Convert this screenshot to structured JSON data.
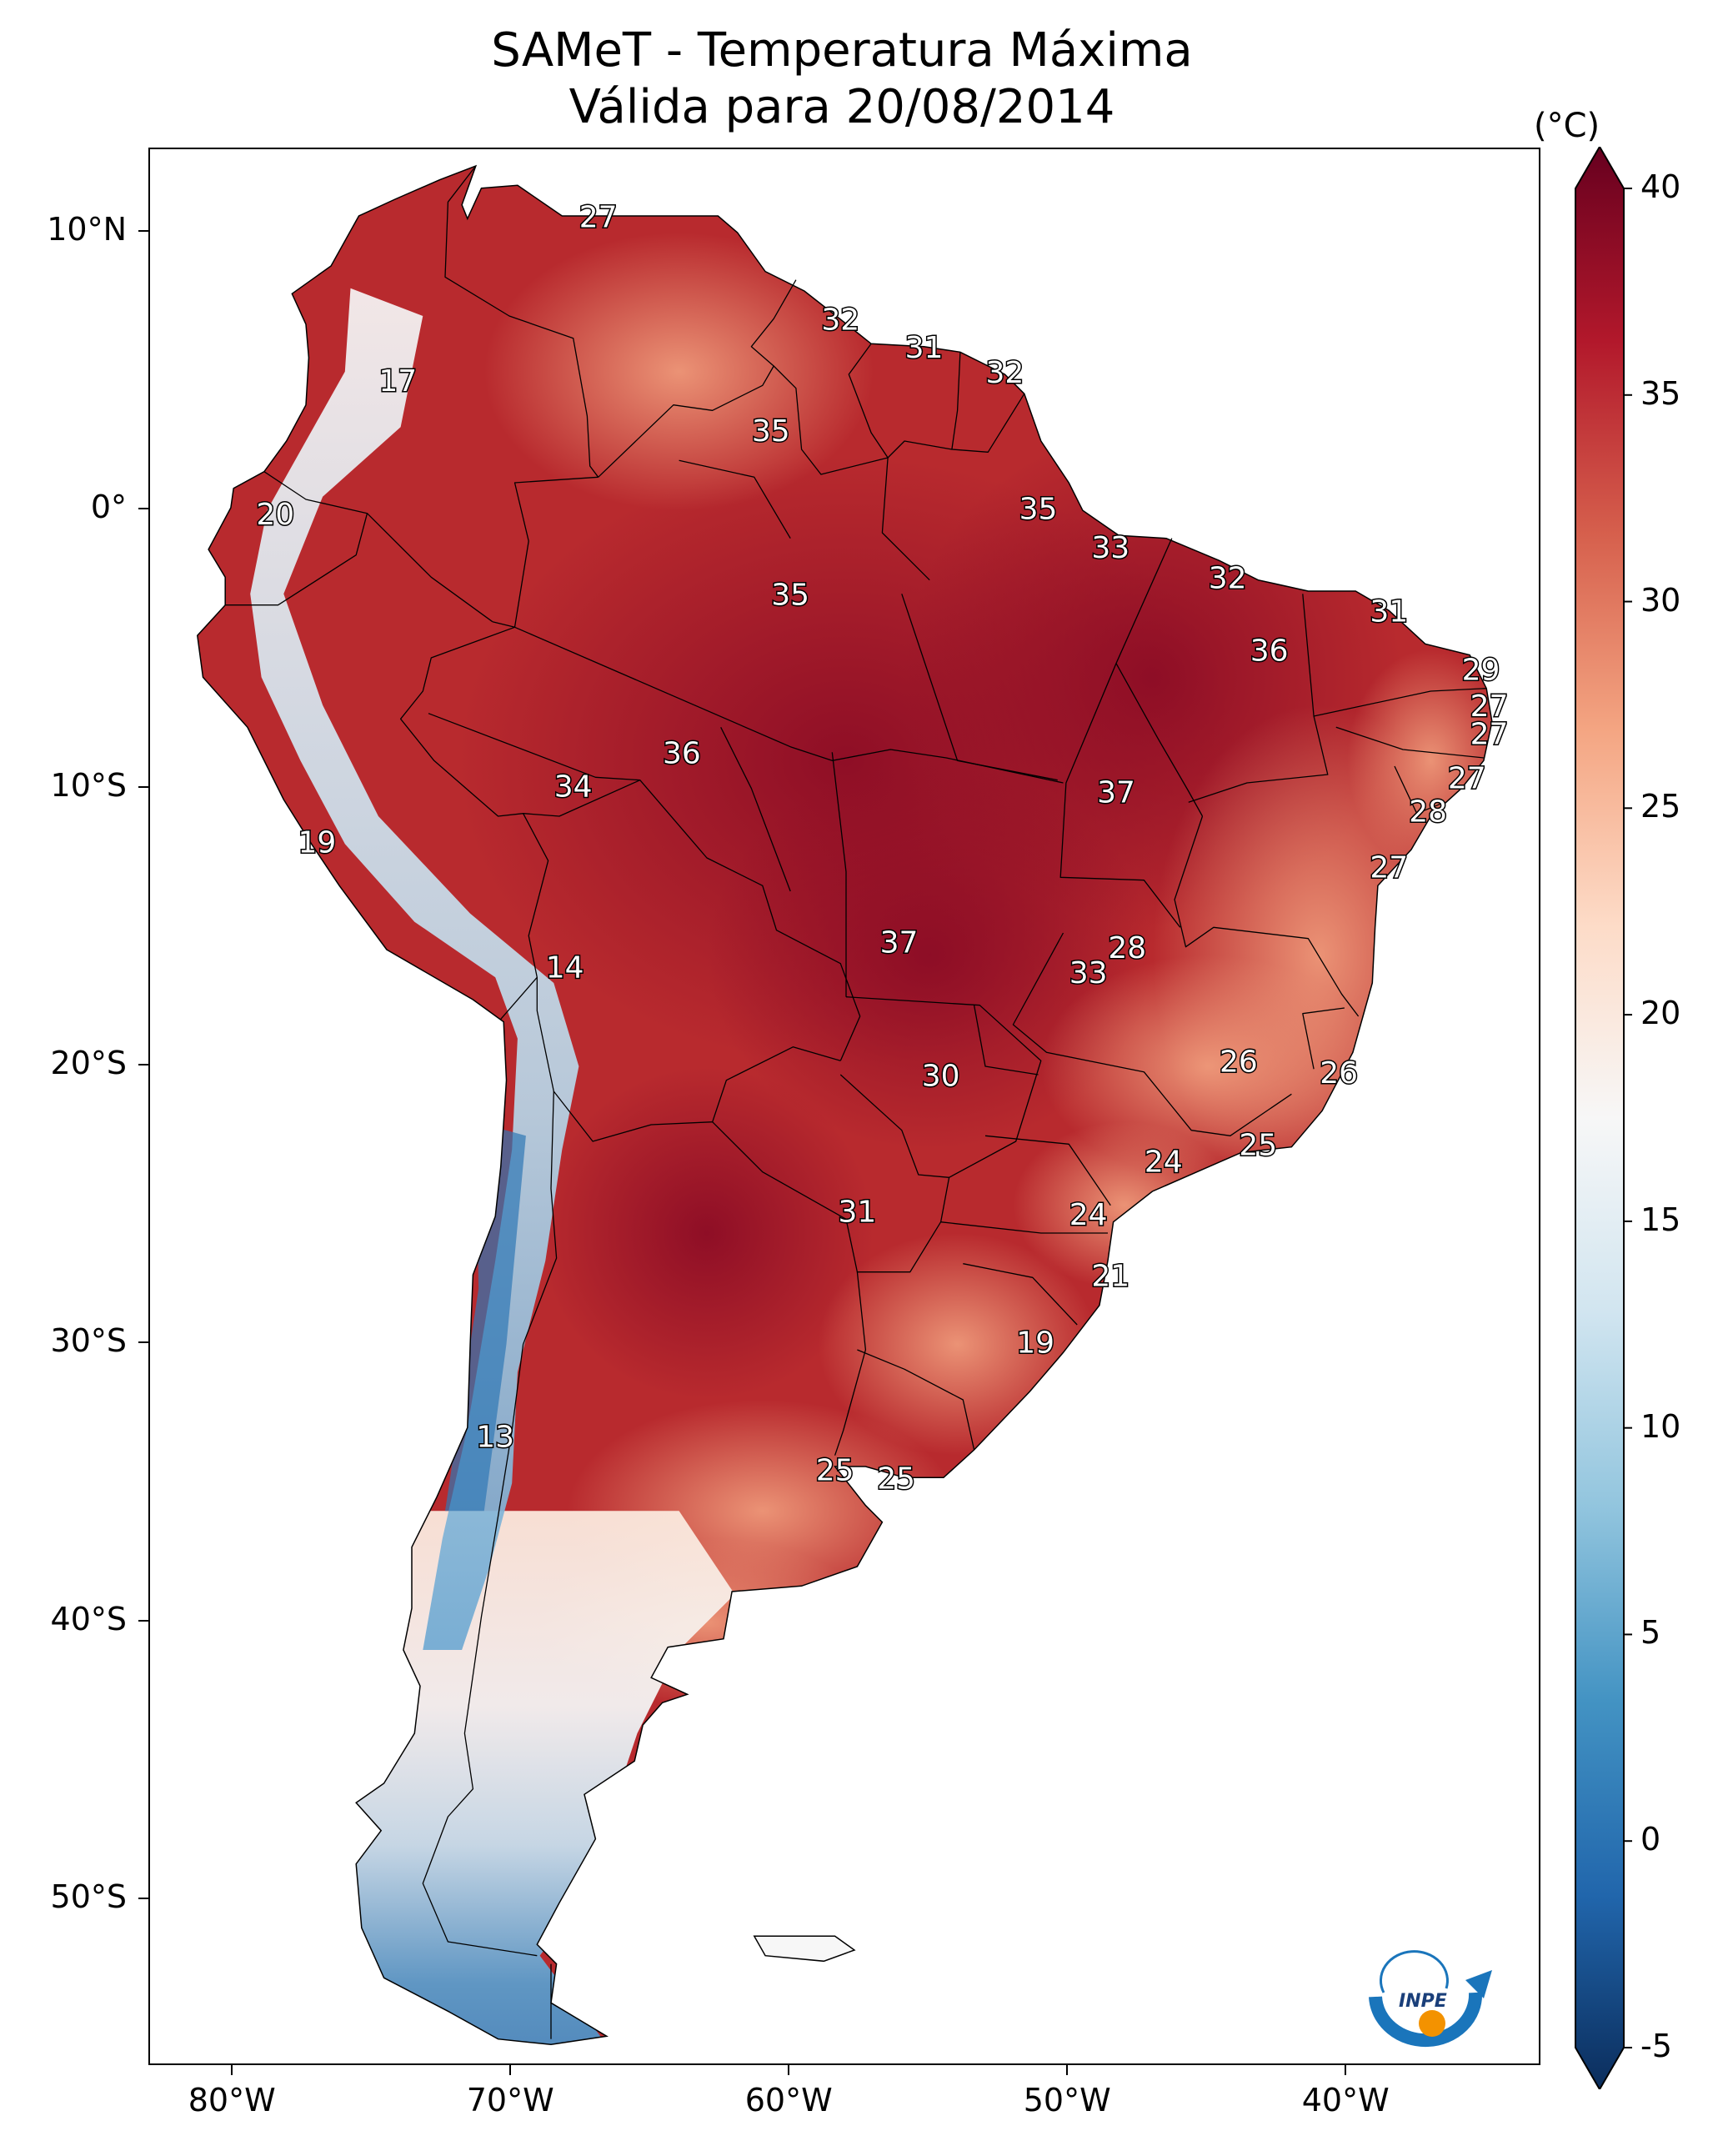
{
  "title": {
    "line1": "SAMeT - Temperatura Máxima",
    "line2": "Válida para 20/08/2014"
  },
  "axes": {
    "lat_ticks": [
      "10°N",
      "0°",
      "10°S",
      "20°S",
      "30°S",
      "40°S",
      "50°S"
    ],
    "lon_ticks": [
      "80°W",
      "70°W",
      "60°W",
      "50°W",
      "40°W"
    ]
  },
  "colorbar": {
    "unit": "(°C)",
    "ticks": [
      "40",
      "35",
      "30",
      "25",
      "20",
      "15",
      "10",
      "5",
      "0",
      "-5"
    ],
    "range": [
      -5,
      40
    ],
    "colormap": "RdBu_r",
    "colors": [
      "#0b2d5c",
      "#2166ac",
      "#4393c3",
      "#92c5de",
      "#d1e5f0",
      "#f7f7f7",
      "#fddbc7",
      "#f4a582",
      "#d6604d",
      "#b2182b",
      "#67001f"
    ]
  },
  "temperature_labels": [
    {
      "lon": -66.9,
      "lat": 10.5,
      "value": "27"
    },
    {
      "lon": -74.1,
      "lat": 4.6,
      "value": "17"
    },
    {
      "lon": -78.5,
      "lat": -0.2,
      "value": "20"
    },
    {
      "lon": -58.2,
      "lat": 6.8,
      "value": "32"
    },
    {
      "lon": -55.2,
      "lat": 5.8,
      "value": "31"
    },
    {
      "lon": -52.3,
      "lat": 4.9,
      "value": "32"
    },
    {
      "lon": -60.7,
      "lat": 2.8,
      "value": "35"
    },
    {
      "lon": -51.1,
      "lat": 0.0,
      "value": "35"
    },
    {
      "lon": -48.5,
      "lat": -1.4,
      "value": "33"
    },
    {
      "lon": -44.3,
      "lat": -2.5,
      "value": "32"
    },
    {
      "lon": -38.5,
      "lat": -3.7,
      "value": "31"
    },
    {
      "lon": -60.0,
      "lat": -3.1,
      "value": "35"
    },
    {
      "lon": -42.8,
      "lat": -5.1,
      "value": "36"
    },
    {
      "lon": -35.2,
      "lat": -5.8,
      "value": "29"
    },
    {
      "lon": -34.9,
      "lat": -7.1,
      "value": "27"
    },
    {
      "lon": -34.9,
      "lat": -8.1,
      "value": "27"
    },
    {
      "lon": -35.7,
      "lat": -9.7,
      "value": "27"
    },
    {
      "lon": -37.1,
      "lat": -10.9,
      "value": "28"
    },
    {
      "lon": -38.5,
      "lat": -12.9,
      "value": "27"
    },
    {
      "lon": -63.9,
      "lat": -8.8,
      "value": "36"
    },
    {
      "lon": -67.8,
      "lat": -10.0,
      "value": "34"
    },
    {
      "lon": -48.3,
      "lat": -10.2,
      "value": "37"
    },
    {
      "lon": -77.0,
      "lat": -12.0,
      "value": "19"
    },
    {
      "lon": -68.1,
      "lat": -16.5,
      "value": "14"
    },
    {
      "lon": -56.1,
      "lat": -15.6,
      "value": "37"
    },
    {
      "lon": -47.9,
      "lat": -15.8,
      "value": "28"
    },
    {
      "lon": -49.3,
      "lat": -16.7,
      "value": "33"
    },
    {
      "lon": -43.9,
      "lat": -19.9,
      "value": "26"
    },
    {
      "lon": -40.3,
      "lat": -20.3,
      "value": "26"
    },
    {
      "lon": -54.6,
      "lat": -20.4,
      "value": "30"
    },
    {
      "lon": -43.2,
      "lat": -22.9,
      "value": "25"
    },
    {
      "lon": -46.6,
      "lat": -23.5,
      "value": "24"
    },
    {
      "lon": -49.3,
      "lat": -25.4,
      "value": "24"
    },
    {
      "lon": -57.6,
      "lat": -25.3,
      "value": "31"
    },
    {
      "lon": -48.5,
      "lat": -27.6,
      "value": "21"
    },
    {
      "lon": -51.2,
      "lat": -30.0,
      "value": "19"
    },
    {
      "lon": -70.6,
      "lat": -33.4,
      "value": "13"
    },
    {
      "lon": -58.4,
      "lat": -34.6,
      "value": "25"
    },
    {
      "lon": -56.2,
      "lat": -34.9,
      "value": "25"
    }
  ],
  "logo_text": "INPE"
}
